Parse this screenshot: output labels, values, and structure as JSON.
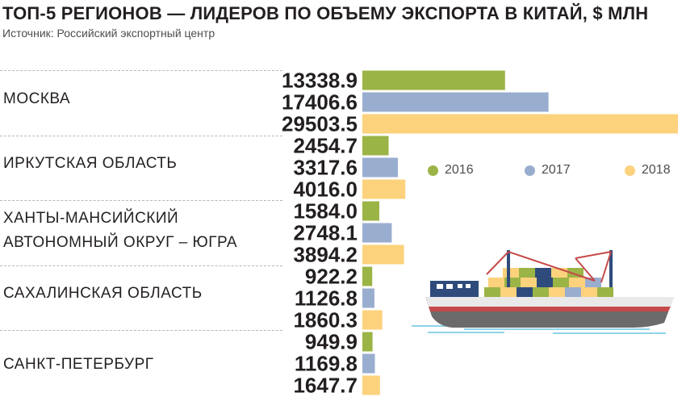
{
  "title": "ТОП-5  РЕГИОНОВ — ЛИДЕРОВ ПО ОБЪЕМУ ЭКСПОРТА В КИТАЙ, $ МЛН",
  "subtitle": "Источник: Российский экспортный центр",
  "regions": [
    {
      "label": "МОСКВА"
    },
    {
      "label": "ИРКУТСКАЯ ОБЛАСТЬ"
    },
    {
      "label": "ХАНТЫ-МАНСИЙСКИЙ АВТОНОМНЫЙ ОКРУГ – ЮГРА"
    },
    {
      "label": "САХАЛИНСКАЯ ОБЛАСТЬ"
    },
    {
      "label": "САНКТ-ПЕТЕРБУРГ"
    }
  ],
  "legend": [
    {
      "label": "2016",
      "color": "#9bb446"
    },
    {
      "label": "2017",
      "color": "#99adcf"
    },
    {
      "label": "2018",
      "color": "#fcd27d"
    }
  ],
  "chart_data": {
    "type": "bar",
    "orientation": "horizontal",
    "categories": [
      "МОСКВА",
      "ИРКУТСКАЯ ОБЛАСТЬ",
      "ХАНТЫ-МАНСИЙСКИЙ АВТОНОМНЫЙ ОКРУГ – ЮГРА",
      "САХАЛИНСКАЯ ОБЛАСТЬ",
      "САНКТ-ПЕТЕРБУРГ"
    ],
    "series": [
      {
        "name": "2016",
        "color": "#9bb446",
        "values": [
          13338.9,
          2454.7,
          1584.0,
          922.2,
          949.9
        ],
        "labels": [
          "13338.9",
          "2454.7",
          "1584.0",
          "922.2",
          "949.9"
        ]
      },
      {
        "name": "2017",
        "color": "#99adcf",
        "values": [
          17406.6,
          3317.6,
          2748.1,
          1126.8,
          1169.8
        ],
        "labels": [
          "17406.6",
          "3317.6",
          "2748.1",
          "1126.8",
          "1169.8"
        ]
      },
      {
        "name": "2018",
        "color": "#fcd27d",
        "values": [
          29503.5,
          4016.0,
          3894.2,
          1860.3,
          1647.7
        ],
        "labels": [
          "29503.5",
          "4016.0",
          "3894.2",
          "1860.3",
          "1647.7"
        ]
      }
    ],
    "title": "ТОП-5  РЕГИОНОВ — ЛИДЕРОВ ПО ОБЪЕМУ ЭКСПОРТА В КИТАЙ, $ МЛН",
    "xlim": [
      0,
      29503.5
    ],
    "grid": false,
    "legend_position": "right"
  },
  "illustration": {
    "icon": "container-ship-icon"
  }
}
